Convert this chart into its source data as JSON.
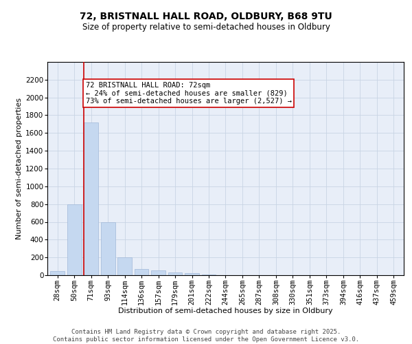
{
  "title1": "72, BRISTNALL HALL ROAD, OLDBURY, B68 9TU",
  "title2": "Size of property relative to semi-detached houses in Oldbury",
  "xlabel": "Distribution of semi-detached houses by size in Oldbury",
  "ylabel": "Number of semi-detached properties",
  "categories": [
    "28sqm",
    "50sqm",
    "71sqm",
    "93sqm",
    "114sqm",
    "136sqm",
    "157sqm",
    "179sqm",
    "201sqm",
    "222sqm",
    "244sqm",
    "265sqm",
    "287sqm",
    "308sqm",
    "330sqm",
    "351sqm",
    "373sqm",
    "394sqm",
    "416sqm",
    "437sqm",
    "459sqm"
  ],
  "values": [
    50,
    800,
    1720,
    600,
    200,
    70,
    55,
    30,
    25,
    10,
    0,
    0,
    0,
    0,
    0,
    0,
    0,
    0,
    0,
    0,
    0
  ],
  "bar_color": "#c5d8f0",
  "bar_edgecolor": "#a0b8d8",
  "vline_index": 2,
  "annotation_text": "72 BRISTNALL HALL ROAD: 72sqm\n← 24% of semi-detached houses are smaller (829)\n73% of semi-detached houses are larger (2,527) →",
  "annotation_box_color": "#ffffff",
  "annotation_box_edgecolor": "#cc0000",
  "vline_color": "#cc0000",
  "ylim": [
    0,
    2400
  ],
  "yticks": [
    0,
    200,
    400,
    600,
    800,
    1000,
    1200,
    1400,
    1600,
    1800,
    2000,
    2200
  ],
  "grid_color": "#c8d4e4",
  "bg_color": "#e8eef8",
  "footer1": "Contains HM Land Registry data © Crown copyright and database right 2025.",
  "footer2": "Contains public sector information licensed under the Open Government Licence v3.0.",
  "title1_fontsize": 10,
  "title2_fontsize": 8.5,
  "xlabel_fontsize": 8,
  "ylabel_fontsize": 8,
  "tick_fontsize": 7.5,
  "annotation_fontsize": 7.5,
  "footer_fontsize": 6.5
}
